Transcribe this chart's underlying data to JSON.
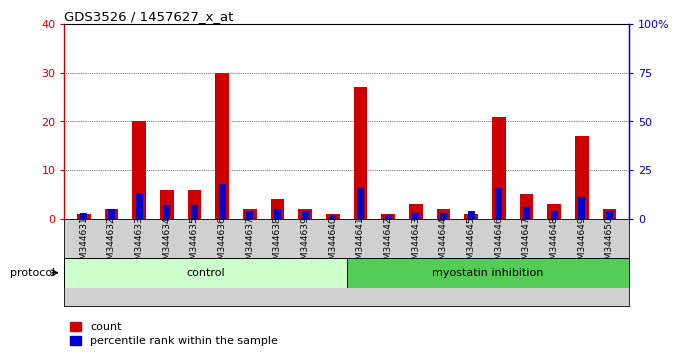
{
  "title": "GDS3526 / 1457627_x_at",
  "samples": [
    "GSM344631",
    "GSM344632",
    "GSM344633",
    "GSM344634",
    "GSM344635",
    "GSM344636",
    "GSM344637",
    "GSM344638",
    "GSM344639",
    "GSM344640",
    "GSM344641",
    "GSM344642",
    "GSM344643",
    "GSM344644",
    "GSM344645",
    "GSM344646",
    "GSM344647",
    "GSM344648",
    "GSM344649",
    "GSM344650"
  ],
  "count_values": [
    1,
    2,
    20,
    6,
    6,
    30,
    2,
    4,
    2,
    1,
    27,
    1,
    3,
    2,
    1,
    21,
    5,
    3,
    17,
    2
  ],
  "percentile_values": [
    3,
    5,
    13,
    7,
    7,
    18,
    4,
    5,
    4,
    2,
    16,
    2,
    3,
    3,
    4,
    16,
    6,
    4,
    11,
    4
  ],
  "count_color": "#cc0000",
  "percentile_color": "#0000cc",
  "left_ylim": [
    0,
    40
  ],
  "right_ylim": [
    0,
    100
  ],
  "left_yticks": [
    0,
    10,
    20,
    30,
    40
  ],
  "right_yticks": [
    0,
    25,
    50,
    75,
    100
  ],
  "right_yticklabels": [
    "0",
    "25",
    "50",
    "75",
    "100%"
  ],
  "control_samples": 10,
  "protocol_label": "protocol",
  "control_label": "control",
  "myostatin_label": "myostatin inhibition",
  "legend_count": "count",
  "legend_percentile": "percentile rank within the sample",
  "bar_width": 0.35,
  "sample_bg_color": "#d0d0d0",
  "control_bg": "#ccffcc",
  "myostatin_bg": "#55cc55",
  "plot_bg": "#ffffff",
  "red_bar_width": 0.5,
  "blue_bar_width": 0.25
}
